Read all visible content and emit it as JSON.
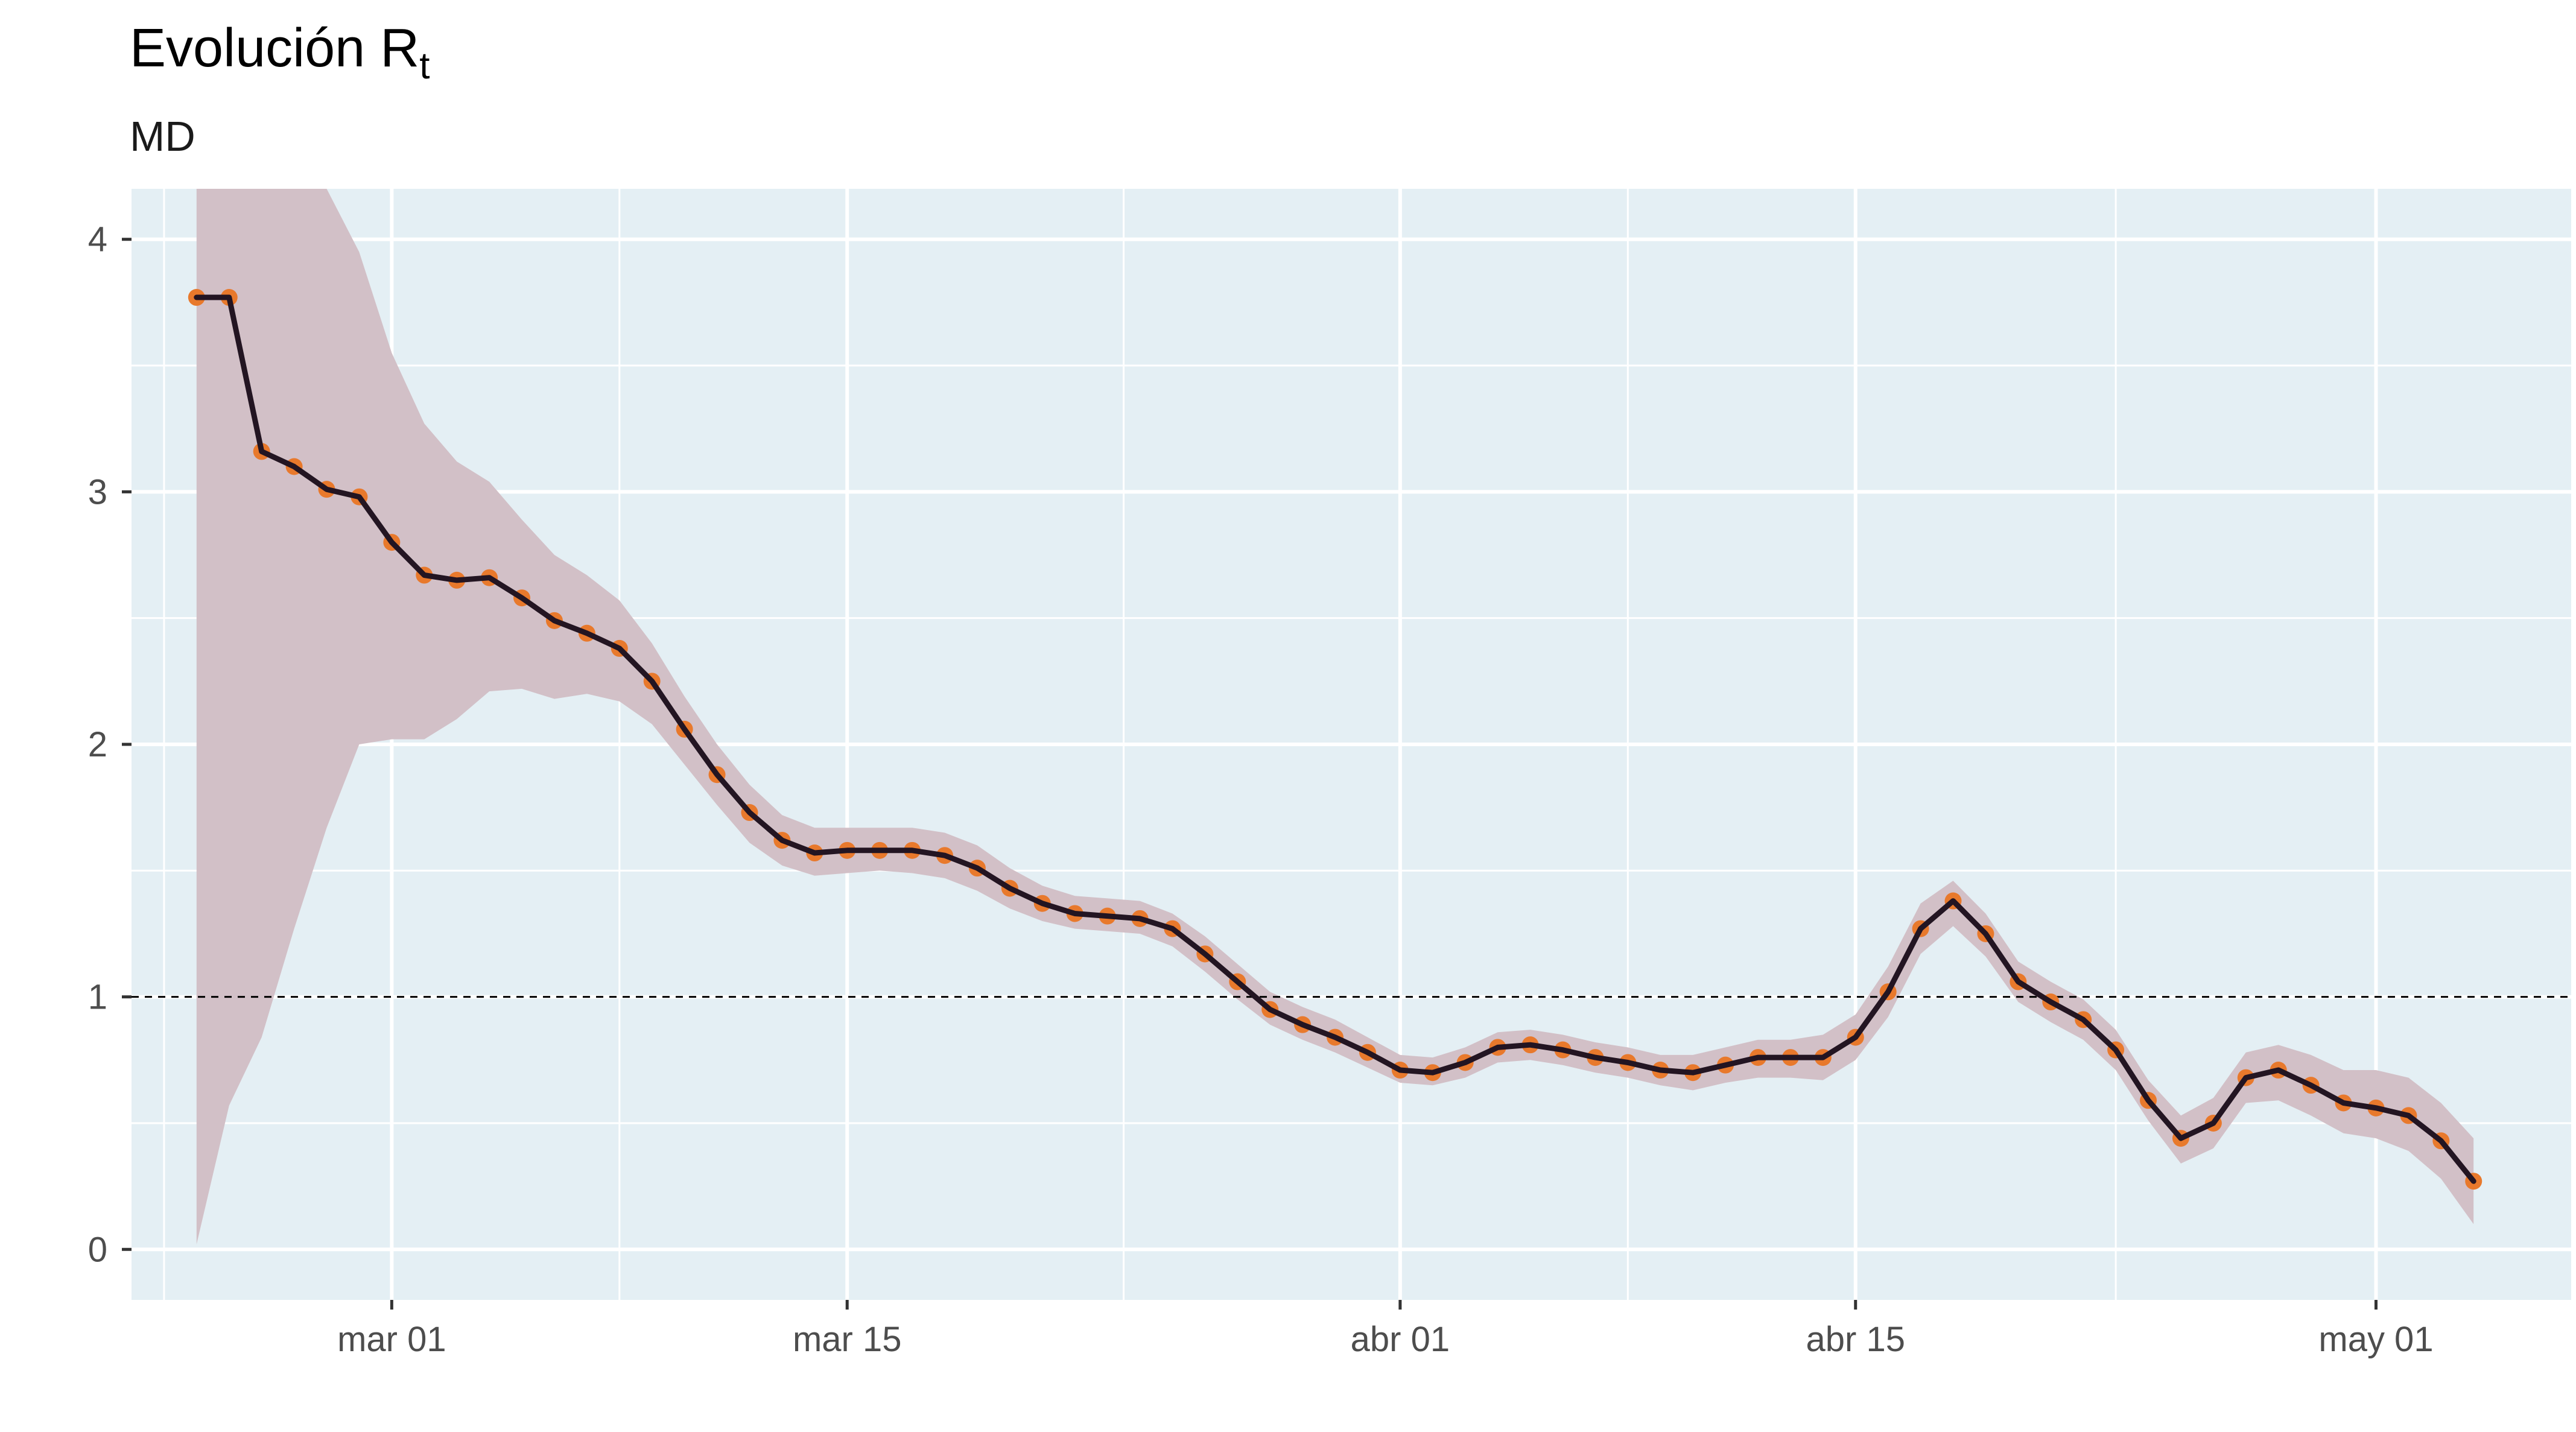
{
  "chart_data": {
    "type": "line",
    "title": "Evolución R",
    "title_subscript": "t",
    "subtitle": "MD",
    "xlabel": "",
    "ylabel": "",
    "x_axis_type": "date",
    "x_tick_labels": [
      {
        "date": "2020-03-01",
        "label": "mar 01"
      },
      {
        "date": "2020-03-15",
        "label": "mar 15"
      },
      {
        "date": "2020-04-01",
        "label": "abr 01"
      },
      {
        "date": "2020-04-15",
        "label": "abr 15"
      },
      {
        "date": "2020-05-01",
        "label": "may 01"
      }
    ],
    "xlim": [
      "2020-02-22",
      "2020-05-07"
    ],
    "yticks": [
      0,
      1,
      2,
      3,
      4
    ],
    "ylim": [
      -0.2,
      4.2
    ],
    "grid": true,
    "reference_line": {
      "y": 1,
      "style": "dashed"
    },
    "colors": {
      "panel_background": "#e4eff4",
      "grid": "#ffffff",
      "band": "#d2c0c7",
      "line": "#231522",
      "points": "#e8792c",
      "reference": "#000000"
    },
    "series": [
      {
        "type": "line_with_points",
        "x": [
          "2020-02-24",
          "2020-02-25",
          "2020-02-26",
          "2020-02-27",
          "2020-02-28",
          "2020-02-29",
          "2020-03-01",
          "2020-03-02",
          "2020-03-03",
          "2020-03-04",
          "2020-03-05",
          "2020-03-06",
          "2020-03-07",
          "2020-03-08",
          "2020-03-09",
          "2020-03-10",
          "2020-03-11",
          "2020-03-12",
          "2020-03-13",
          "2020-03-14",
          "2020-03-15",
          "2020-03-16",
          "2020-03-17",
          "2020-03-18",
          "2020-03-19",
          "2020-03-20",
          "2020-03-21",
          "2020-03-22",
          "2020-03-23",
          "2020-03-24",
          "2020-03-25",
          "2020-03-26",
          "2020-03-27",
          "2020-03-28",
          "2020-03-29",
          "2020-03-30",
          "2020-03-31",
          "2020-04-01",
          "2020-04-02",
          "2020-04-03",
          "2020-04-04",
          "2020-04-05",
          "2020-04-06",
          "2020-04-07",
          "2020-04-08",
          "2020-04-09",
          "2020-04-10",
          "2020-04-11",
          "2020-04-12",
          "2020-04-13",
          "2020-04-14",
          "2020-04-15",
          "2020-04-16",
          "2020-04-17",
          "2020-04-18",
          "2020-04-19",
          "2020-04-20",
          "2020-04-21",
          "2020-04-22",
          "2020-04-23",
          "2020-04-24",
          "2020-04-25",
          "2020-04-26",
          "2020-04-27",
          "2020-04-28",
          "2020-04-29",
          "2020-04-30",
          "2020-05-01",
          "2020-05-02",
          "2020-05-03",
          "2020-05-04"
        ],
        "values": [
          3.77,
          3.77,
          3.16,
          3.1,
          3.01,
          2.98,
          2.8,
          2.67,
          2.65,
          2.66,
          2.58,
          2.49,
          2.44,
          2.38,
          2.25,
          2.06,
          1.88,
          1.73,
          1.62,
          1.57,
          1.58,
          1.58,
          1.58,
          1.56,
          1.51,
          1.43,
          1.37,
          1.33,
          1.32,
          1.31,
          1.27,
          1.17,
          1.06,
          0.95,
          0.89,
          0.84,
          0.78,
          0.71,
          0.7,
          0.74,
          0.8,
          0.81,
          0.79,
          0.76,
          0.74,
          0.71,
          0.7,
          0.73,
          0.76,
          0.76,
          0.76,
          0.84,
          1.02,
          1.27,
          1.38,
          1.25,
          1.06,
          0.98,
          0.91,
          0.79,
          0.59,
          0.44,
          0.5,
          0.68,
          0.71,
          0.65,
          0.58,
          0.56,
          0.53,
          0.43,
          0.27
        ],
        "lower": [
          0.02,
          0.57,
          0.84,
          1.27,
          1.67,
          2.0,
          2.02,
          2.02,
          2.1,
          2.21,
          2.22,
          2.18,
          2.2,
          2.17,
          2.08,
          1.92,
          1.76,
          1.61,
          1.52,
          1.48,
          1.49,
          1.5,
          1.49,
          1.47,
          1.42,
          1.35,
          1.3,
          1.27,
          1.26,
          1.25,
          1.2,
          1.1,
          0.99,
          0.89,
          0.83,
          0.78,
          0.72,
          0.66,
          0.65,
          0.68,
          0.74,
          0.75,
          0.73,
          0.7,
          0.68,
          0.65,
          0.63,
          0.66,
          0.68,
          0.68,
          0.67,
          0.75,
          0.92,
          1.17,
          1.28,
          1.16,
          0.98,
          0.9,
          0.83,
          0.71,
          0.51,
          0.34,
          0.4,
          0.58,
          0.59,
          0.53,
          0.46,
          0.44,
          0.39,
          0.28,
          0.1
        ],
        "upper": [
          4.4,
          4.4,
          4.4,
          4.4,
          4.25,
          3.95,
          3.55,
          3.27,
          3.12,
          3.04,
          2.89,
          2.75,
          2.67,
          2.57,
          2.4,
          2.19,
          2.0,
          1.84,
          1.72,
          1.67,
          1.67,
          1.67,
          1.67,
          1.65,
          1.6,
          1.51,
          1.44,
          1.4,
          1.39,
          1.38,
          1.33,
          1.24,
          1.13,
          1.02,
          0.96,
          0.91,
          0.84,
          0.77,
          0.76,
          0.8,
          0.86,
          0.87,
          0.85,
          0.82,
          0.8,
          0.77,
          0.77,
          0.8,
          0.83,
          0.83,
          0.85,
          0.93,
          1.12,
          1.37,
          1.46,
          1.33,
          1.14,
          1.06,
          0.99,
          0.87,
          0.67,
          0.53,
          0.6,
          0.78,
          0.81,
          0.77,
          0.71,
          0.71,
          0.68,
          0.58,
          0.44
        ]
      }
    ]
  }
}
